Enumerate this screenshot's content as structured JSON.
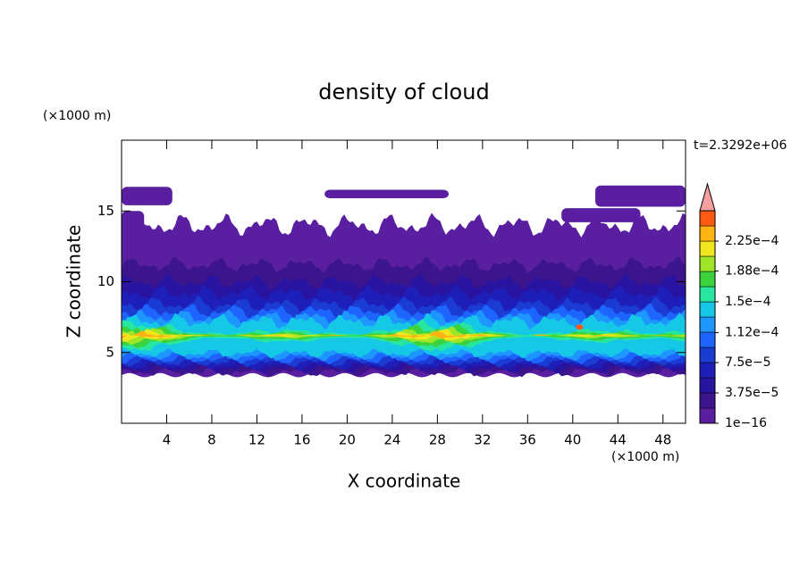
{
  "chart_data": {
    "type": "contour",
    "title": "density of cloud",
    "xlabel": "X coordinate",
    "ylabel": "Z coordinate",
    "x_unit": "(×1000 m)",
    "y_unit": "(×1000 m)",
    "annotation": "t=2.3292e+06",
    "xlim": [
      0,
      50
    ],
    "xticks": [
      4,
      8,
      12,
      16,
      20,
      24,
      28,
      32,
      36,
      40,
      44,
      48
    ],
    "ylim": [
      0,
      20
    ],
    "yticks": [
      5,
      10,
      15
    ],
    "clim": [
      1e-16,
      0.0002625
    ],
    "cticks": [
      {
        "value": 1e-16,
        "label": "1e−16"
      },
      {
        "value": 3.75e-05,
        "label": "3.75e−5"
      },
      {
        "value": 7.5e-05,
        "label": "7.5e−5"
      },
      {
        "value": 0.000112,
        "label": "1.12e−4"
      },
      {
        "value": 0.00015,
        "label": "1.5e−4"
      },
      {
        "value": 0.000188,
        "label": "1.88e−4"
      },
      {
        "value": 0.000225,
        "label": "2.25e−4"
      }
    ],
    "colors": [
      "#5a1ea0",
      "#3c148c",
      "#2814a0",
      "#1e1eb9",
      "#1a3cd2",
      "#1e64ff",
      "#1e96ff",
      "#14c8e6",
      "#28e6a0",
      "#3cd23c",
      "#a0e628",
      "#f0e61e",
      "#ffb414",
      "#ff5a14"
    ],
    "over_color": "#f4a0a0"
  }
}
